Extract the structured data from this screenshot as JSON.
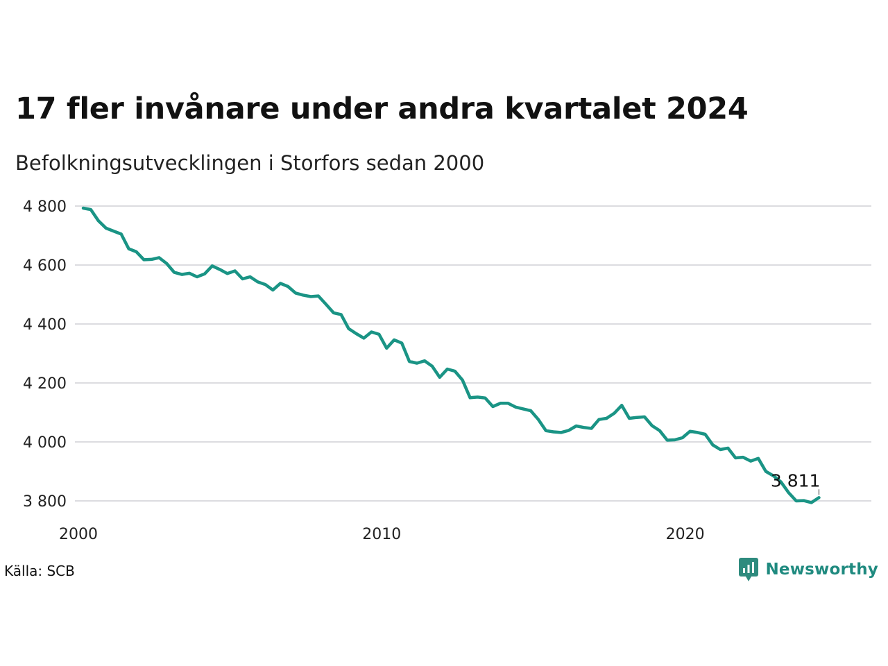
{
  "chart_data": {
    "type": "line",
    "title": "17 fler invånare under andra kvartalet 2024",
    "subtitle": "Befolkningsutvecklingen i Storfors sedan 2000",
    "xlabel": "",
    "ylabel": "",
    "ylim": [
      3750,
      4810
    ],
    "y_ticks": [
      3800,
      4000,
      4200,
      4400,
      4600,
      4800
    ],
    "y_tick_labels": [
      "3 800",
      "4 000",
      "4 200",
      "4 400",
      "4 600",
      "4 800"
    ],
    "x_range": [
      2000.0,
      2025.2
    ],
    "x_ticks": [
      2000,
      2010,
      2020
    ],
    "x_tick_labels": [
      "2000",
      "2010",
      "2020"
    ],
    "grid": "horizontal",
    "line_color": "#1a9485",
    "end_label": "3 811",
    "series": [
      {
        "x": [
          2000.0,
          2000.25,
          2000.5,
          2000.75,
          2001.0,
          2001.25,
          2001.5,
          2001.75,
          2002.0,
          2002.25,
          2002.5,
          2002.75,
          2003.0,
          2003.25,
          2003.5,
          2003.75,
          2004.0,
          2004.25,
          2004.5,
          2004.75,
          2005.0,
          2005.25,
          2005.5,
          2005.75,
          2006.0,
          2006.25,
          2006.5,
          2006.75,
          2007.0,
          2007.25,
          2007.5,
          2007.75,
          2008.0,
          2008.25,
          2008.5,
          2008.75,
          2009.0,
          2009.25,
          2009.5,
          2009.75,
          2010.0,
          2010.25,
          2010.5,
          2010.75,
          2011.0,
          2011.25,
          2011.5,
          2011.75,
          2012.0,
          2012.25,
          2012.5,
          2012.75,
          2013.0,
          2013.25,
          2013.5,
          2013.75,
          2014.0,
          2014.25,
          2014.5,
          2014.75,
          2015.0,
          2015.25,
          2015.5,
          2015.75,
          2016.0,
          2016.25,
          2016.5,
          2016.75,
          2017.0,
          2017.25,
          2017.5,
          2017.75,
          2018.0,
          2018.25,
          2018.5,
          2018.75,
          2019.0,
          2019.25,
          2019.5,
          2019.75,
          2020.0,
          2020.25,
          2020.5,
          2020.75,
          2021.0,
          2021.25,
          2021.5,
          2021.75,
          2022.0,
          2022.25,
          2022.5,
          2022.75,
          2023.0,
          2023.25,
          2023.5,
          2023.75,
          2024.0,
          2024.25
        ],
        "values": [
          4793,
          4788,
          4750,
          4725,
          4715,
          4705,
          4655,
          4645,
          4618,
          4619,
          4625,
          4605,
          4575,
          4568,
          4572,
          4560,
          4570,
          4597,
          4585,
          4571,
          4580,
          4553,
          4560,
          4543,
          4534,
          4515,
          4538,
          4527,
          4505,
          4498,
          4493,
          4495,
          4467,
          4438,
          4432,
          4384,
          4367,
          4352,
          4373,
          4365,
          4318,
          4346,
          4335,
          4273,
          4267,
          4275,
          4257,
          4219,
          4247,
          4240,
          4210,
          4150,
          4152,
          4149,
          4120,
          4131,
          4131,
          4118,
          4112,
          4106,
          4076,
          4038,
          4034,
          4032,
          4039,
          4054,
          4049,
          4046,
          4076,
          4080,
          4097,
          4124,
          4080,
          4083,
          4085,
          4055,
          4038,
          4006,
          4007,
          4014,
          4036,
          4032,
          4026,
          3990,
          3974,
          3979,
          3946,
          3948,
          3935,
          3944,
          3900,
          3885,
          3864,
          3828,
          3800,
          3801,
          3794,
          3811
        ]
      }
    ],
    "source": "Källa: SCB",
    "brand": "Newsworthy",
    "brand_color": "#1f8a7f"
  }
}
